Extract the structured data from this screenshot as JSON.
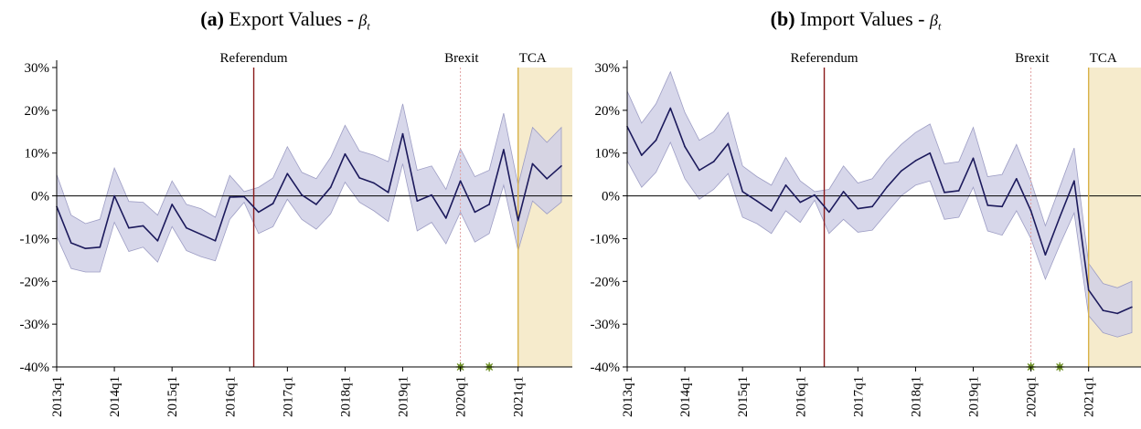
{
  "panels": [
    {
      "tag": "(a)",
      "title": "Export Values - ",
      "beta": "β",
      "beta_sub": "t"
    },
    {
      "tag": "(b)",
      "title": "Import Values - ",
      "beta": "β",
      "beta_sub": "t"
    }
  ],
  "colors": {
    "line": "#1c1a5c",
    "band": "#d0d0e6",
    "band_edge": "#9d9dc4",
    "referendum_line": "#8b1a1a",
    "brexit_line": "#e0a0a0",
    "tca_line": "#d8b24a",
    "tca_shade": "#f6ebcc",
    "marker": "#6b8e23"
  },
  "chart_data": [
    {
      "type": "line",
      "title": "(a) Export Values - βt",
      "ylim": [
        -40,
        30
      ],
      "y_ticks": [
        30,
        20,
        10,
        0,
        -10,
        -20,
        -30,
        -40
      ],
      "y_tick_labels": [
        "30%",
        "20%",
        "10%",
        "0%",
        "-10%",
        "-20%",
        "-30%",
        "-40%"
      ],
      "x_start": "2013q1",
      "x_end": "2021q4",
      "x_ticks": [
        "2013q1",
        "2014q1",
        "2015q1",
        "2016q1",
        "2017q1",
        "2018q1",
        "2019q1",
        "2020q1",
        "2021q1"
      ],
      "grid": false,
      "zero_line": true,
      "x_months": [
        "2013m1",
        "2013m4",
        "2013m7",
        "2013m10",
        "2014m1",
        "2014m4",
        "2014m7",
        "2014m10",
        "2015m1",
        "2015m4",
        "2015m7",
        "2015m10",
        "2016m1",
        "2016m4",
        "2016m7",
        "2016m10",
        "2017m1",
        "2017m4",
        "2017m7",
        "2017m10",
        "2018m1",
        "2018m4",
        "2018m7",
        "2018m10",
        "2019m1",
        "2019m4",
        "2019m7",
        "2019m10",
        "2020m1",
        "2020m4",
        "2020m7",
        "2020m10",
        "2021m1",
        "2021m4",
        "2021m7",
        "2021m10"
      ],
      "values": [
        -2.5,
        -11,
        -12.3,
        -12,
        0,
        -7.5,
        -7,
        -10.5,
        -2,
        -7.5,
        -9,
        -10.5,
        -0.3,
        -0.2,
        -3.8,
        -1.8,
        5.2,
        0.2,
        -2,
        2,
        9.8,
        4.2,
        3,
        0.8,
        14.5,
        -1.2,
        0.2,
        -5.2,
        3.5,
        -3.8,
        -2,
        10.8,
        -5.8,
        7.5,
        4,
        7
      ],
      "ci_upper": [
        5,
        -4.5,
        -6.5,
        -5.5,
        6.5,
        -1.3,
        -1.5,
        -4.5,
        3.5,
        -2,
        -3,
        -5,
        4.8,
        1,
        2,
        4.2,
        11.5,
        5.5,
        4,
        9,
        16.5,
        10.5,
        9.5,
        8,
        21.5,
        6,
        7,
        1.5,
        11,
        4.5,
        6,
        19.3,
        2.5,
        16,
        12.5,
        16
      ],
      "ci_lower": [
        -9.5,
        -17,
        -17.8,
        -17.8,
        -6.2,
        -13,
        -12,
        -15.5,
        -7.2,
        -12.8,
        -14.2,
        -15.2,
        -5.5,
        -1.5,
        -8.8,
        -7.2,
        -0.8,
        -5.5,
        -7.8,
        -4.2,
        3.2,
        -1.5,
        -3.5,
        -6,
        7.5,
        -8.2,
        -6.2,
        -11.2,
        -3.8,
        -10.8,
        -8.8,
        2.5,
        -12.8,
        -1.2,
        -4.2,
        -1.5
      ],
      "vlines": [
        {
          "label": "Referendum",
          "x": "2016m6"
        },
        {
          "label": "Brexit",
          "x": "2020m1"
        },
        {
          "label": "TCA",
          "x": "2021m1"
        }
      ],
      "shaded_from": "2021m1",
      "markers": [
        {
          "x": "2020m1",
          "y": -40
        },
        {
          "x": "2020m7",
          "y": -40
        }
      ]
    },
    {
      "type": "line",
      "title": "(b) Import Values - βt",
      "ylim": [
        -40,
        30
      ],
      "y_ticks": [
        30,
        20,
        10,
        0,
        -10,
        -20,
        -30,
        -40
      ],
      "y_tick_labels": [
        "30%",
        "20%",
        "10%",
        "0%",
        "-10%",
        "-20%",
        "-30%",
        "-40%"
      ],
      "x_start": "2013q1",
      "x_end": "2021q4",
      "x_ticks": [
        "2013q1",
        "2014q1",
        "2015q1",
        "2016q1",
        "2017q1",
        "2018q1",
        "2019q1",
        "2020q1",
        "2021q1"
      ],
      "grid": false,
      "zero_line": true,
      "x_months": [
        "2013m1",
        "2013m4",
        "2013m7",
        "2013m10",
        "2014m1",
        "2014m4",
        "2014m7",
        "2014m10",
        "2015m1",
        "2015m4",
        "2015m7",
        "2015m10",
        "2016m1",
        "2016m4",
        "2016m7",
        "2016m10",
        "2017m1",
        "2017m4",
        "2017m7",
        "2017m10",
        "2018m1",
        "2018m4",
        "2018m7",
        "2018m10",
        "2019m1",
        "2019m4",
        "2019m7",
        "2019m10",
        "2020m1",
        "2020m4",
        "2020m7",
        "2020m10",
        "2021m1",
        "2021m4",
        "2021m7",
        "2021m10"
      ],
      "values": [
        16.2,
        9.5,
        13,
        20.5,
        11.5,
        6,
        8,
        12.2,
        1,
        -1.2,
        -3.5,
        2.5,
        -1.5,
        0.2,
        -3.8,
        1,
        -3,
        -2.5,
        2,
        5.8,
        8.2,
        10,
        0.8,
        1.2,
        8.8,
        -2.2,
        -2.5,
        4,
        -3.5,
        -13.8,
        -5,
        3.5,
        -22,
        -26.8,
        -27.5,
        -26
      ],
      "ci_upper": [
        24.5,
        17,
        21.5,
        29,
        19.5,
        13,
        15,
        19.5,
        7,
        4.5,
        2.5,
        9,
        3.5,
        1,
        1.5,
        7,
        3,
        4,
        8.5,
        12,
        14.8,
        16.8,
        7.5,
        8,
        16,
        4.5,
        5,
        12,
        3.5,
        -7,
        2,
        11.2,
        -15.8,
        -20.5,
        -21.5,
        -20
      ],
      "ci_lower": [
        8.2,
        2,
        5.5,
        12.5,
        4,
        -0.8,
        1.5,
        5.2,
        -5,
        -6.5,
        -8.8,
        -3.5,
        -6.2,
        -1,
        -8.8,
        -5.5,
        -8.5,
        -8,
        -4,
        0,
        2.5,
        3.5,
        -5.5,
        -5,
        2,
        -8.2,
        -9.2,
        -3.5,
        -10,
        -19.5,
        -11.5,
        -4,
        -28,
        -32,
        -33,
        -32
      ],
      "vlines": [
        {
          "label": "Referendum",
          "x": "2016m6"
        },
        {
          "label": "Brexit",
          "x": "2020m1"
        },
        {
          "label": "TCA",
          "x": "2021m1"
        }
      ],
      "shaded_from": "2021m1",
      "markers": [
        {
          "x": "2020m1",
          "y": -40
        },
        {
          "x": "2020m7",
          "y": -40
        }
      ]
    }
  ]
}
